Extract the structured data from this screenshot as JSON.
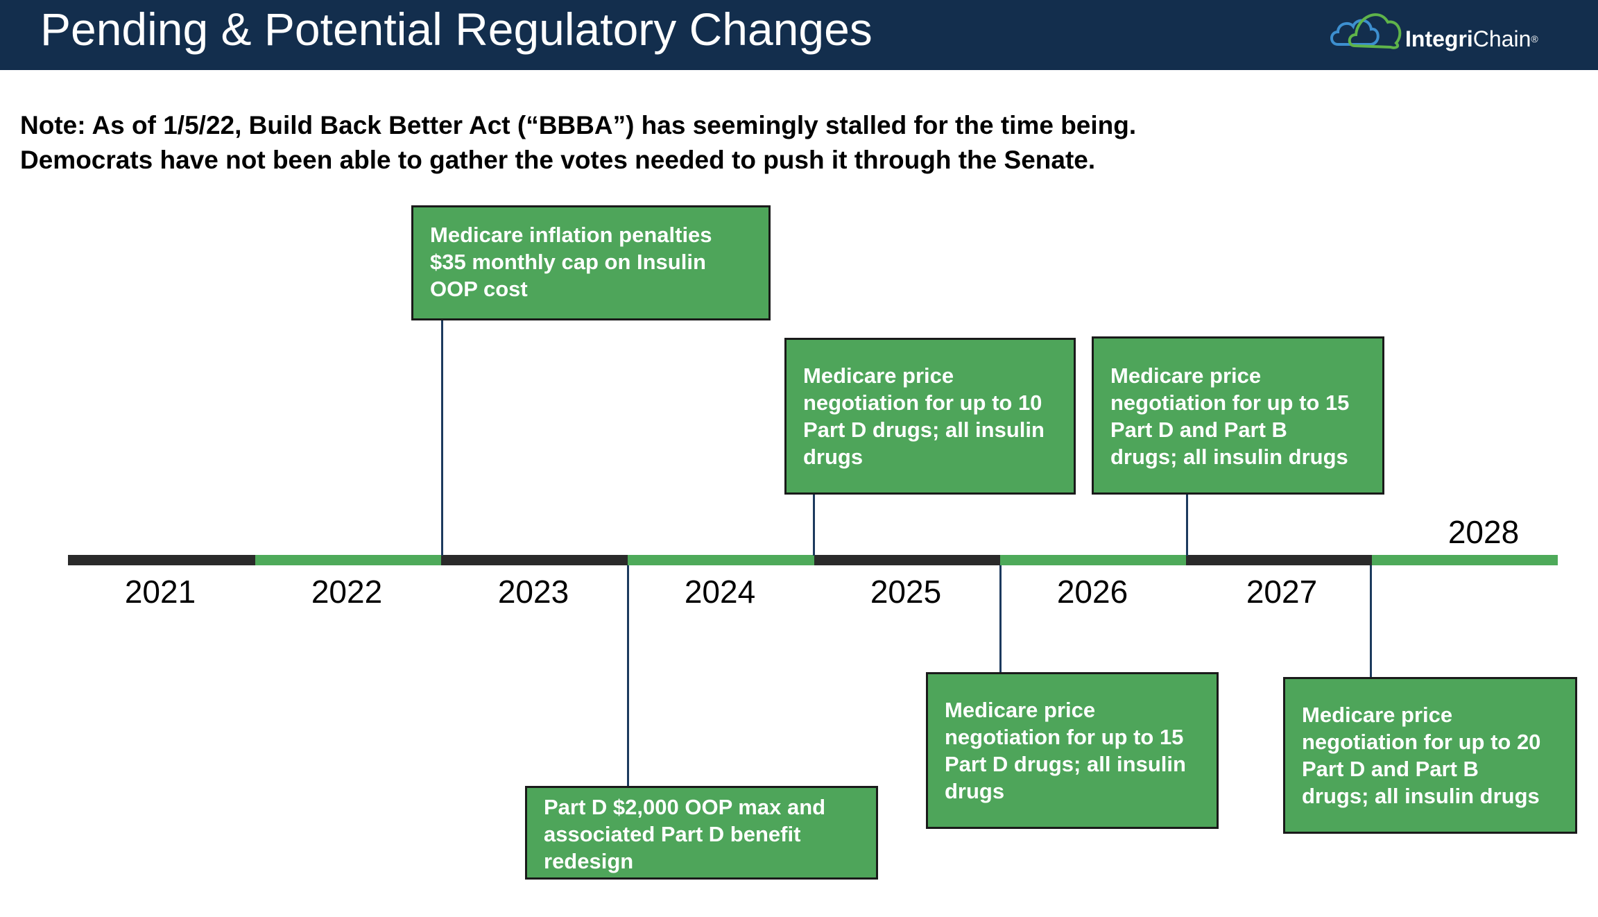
{
  "header": {
    "title": "Pending & Potential Regulatory Changes",
    "logo": {
      "icon": "cloud-logo-icon",
      "text_bold": "Integri",
      "text_regular": "Chain",
      "trademark": "®"
    }
  },
  "note": {
    "line1": "Note: As of 1/5/22, Build Back Better Act (“BBBA”) has seemingly stalled for the time being.",
    "line2": "Democrats have not been able to gather the votes needed to push it through the Senate."
  },
  "timeline": {
    "years": [
      "2021",
      "2022",
      "2023",
      "2024",
      "2025",
      "2026",
      "2027",
      "2028"
    ],
    "colors": {
      "dark_segment": "#2a2a2a",
      "light_segment": "#4eaa5a",
      "box_fill": "#4ea55a",
      "connector": "#1c3a5e"
    },
    "events": [
      {
        "text": "Medicare inflation penalties\n$35 monthly cap on Insulin\nOOP cost"
      },
      {
        "text": "Part D $2,000 OOP max and\nassociated Part D benefit\nredesign"
      },
      {
        "text": "Medicare price\nnegotiation for up to 10\nPart D drugs; all insulin\ndrugs"
      },
      {
        "text": "Medicare price\nnegotiation for up to 15\nPart D drugs; all insulin\ndrugs"
      },
      {
        "text": "Medicare price\nnegotiation for up to 15\nPart D and Part B\ndrugs; all insulin drugs"
      },
      {
        "text": "Medicare price\nnegotiation for up to 20\nPart D and Part B\ndrugs; all insulin drugs"
      }
    ]
  }
}
